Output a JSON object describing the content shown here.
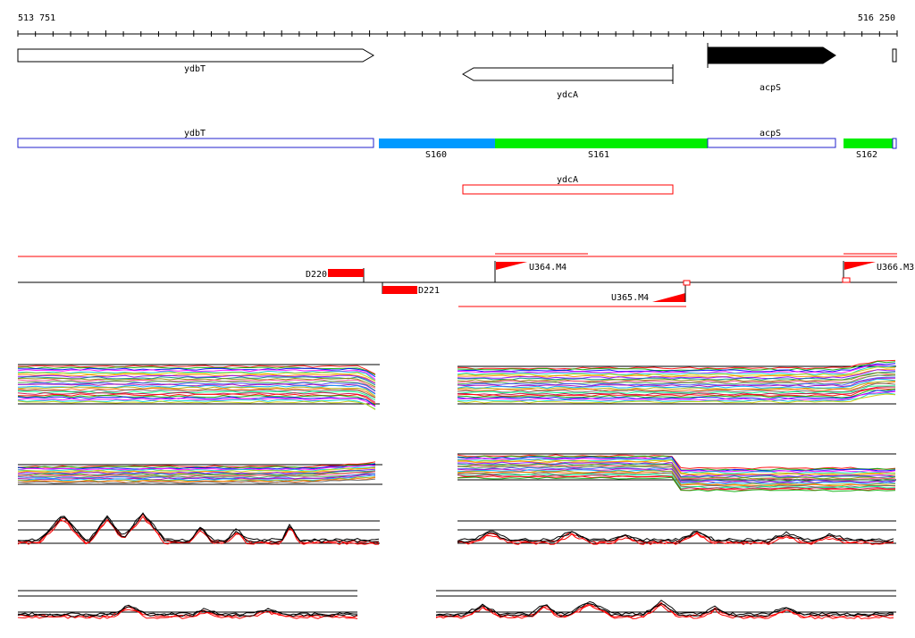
{
  "coords": {
    "start": "513 751",
    "end": "516 250"
  },
  "genes_forward": [
    {
      "label": "ydbT",
      "strand": "+",
      "highlight": false
    },
    {
      "label": "acpS",
      "strand": "+",
      "highlight": true
    }
  ],
  "genes_reverse": [
    {
      "label": "ydcA",
      "strand": "-"
    }
  ],
  "segments": [
    {
      "label": "ydbT",
      "kind": "gene"
    },
    {
      "label": "S160",
      "kind": "segment",
      "color": "#0099ff"
    },
    {
      "label": "S161",
      "kind": "segment",
      "color": "#00ee00"
    },
    {
      "label": "acpS",
      "kind": "gene"
    },
    {
      "label": "S162",
      "kind": "segment",
      "color": "#00ee00"
    }
  ],
  "reverse_gene_box": {
    "label": "ydcA",
    "color": "#ff0000"
  },
  "features": [
    {
      "label": "D220",
      "type": "downshift",
      "color": "#ff0000"
    },
    {
      "label": "D221",
      "type": "downshift",
      "color": "#ff0000"
    },
    {
      "label": "U364.M4",
      "type": "upshift",
      "color": "#ff0000"
    },
    {
      "label": "U365.M4",
      "type": "upshift",
      "color": "#ff0000"
    },
    {
      "label": "U366.M3",
      "type": "upshift",
      "color": "#ff0000"
    }
  ],
  "colors": {
    "gene_box_outline": "#2222cc",
    "feature_red": "#ff0000",
    "S160": "#0099ff",
    "S161": "#00ee00",
    "S162": "#00ee00"
  }
}
